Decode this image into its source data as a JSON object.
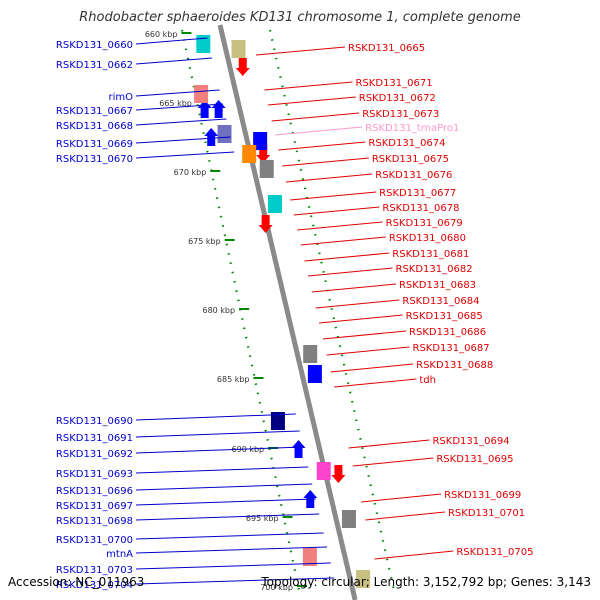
{
  "title": "Rhodobacter sphaeroides KD131 chromosome 1, complete genome",
  "footer": {
    "accession": "Accession: NC_011963",
    "summary": "Topology: circular; Length: 3,152,792 bp; Genes: 3,143"
  },
  "colors": {
    "backbone": "#8a8a8a",
    "left_labels": "#0000cc",
    "right_labels": "#e00000",
    "rna_label": "#ff99cc",
    "ruler_dots": "#008800",
    "gene_red": "#ff0000",
    "gene_blue": "#0000ff",
    "gene_navy": "#000080",
    "gene_cyan": "#00cccc",
    "gene_orange": "#ff8800",
    "gene_gray": "#808080",
    "gene_pink": "#ff44cc",
    "gene_olive": "#c8c080",
    "gene_salmon": "#f08080",
    "gene_slate": "#7070c0"
  },
  "ruler": [
    "660 kbp",
    "665 kbp",
    "670 kbp",
    "675 kbp",
    "680 kbp",
    "685 kbp",
    "690 kbp",
    "695 kbp",
    "700 kbp"
  ],
  "left_labels": [
    "RSKD131_0660",
    "RSKD131_0662",
    "rimO",
    "RSKD131_0667",
    "RSKD131_0668",
    "RSKD131_0669",
    "RSKD131_0670",
    "RSKD131_0690",
    "RSKD131_0691",
    "RSKD131_0692",
    "RSKD131_0693",
    "RSKD131_0696",
    "RSKD131_0697",
    "RSKD131_0698",
    "RSKD131_0700",
    "mtnA",
    "RSKD131_0703",
    "RSKD131_0704"
  ],
  "right_labels": [
    "RSKD131_0665",
    "RSKD131_0671",
    "RSKD131_0672",
    "RSKD131_0673",
    "RSKD131_trnaPro1",
    "RSKD131_0674",
    "RSKD131_0675",
    "RSKD131_0676",
    "RSKD131_0677",
    "RSKD131_0678",
    "RSKD131_0679",
    "RSKD131_0680",
    "RSKD131_0681",
    "RSKD131_0682",
    "RSKD131_0683",
    "RSKD131_0684",
    "RSKD131_0685",
    "RSKD131_0686",
    "RSKD131_0687",
    "RSKD131_0688",
    "tdh",
    "RSKD131_0694",
    "RSKD131_0695",
    "RSKD131_0699",
    "RSKD131_0701",
    "RSKD131_0705"
  ],
  "genes": [
    {
      "strand": "+",
      "kind": "block",
      "color": "gene_cyan"
    },
    {
      "strand": "+",
      "kind": "arrow",
      "color": "gene_blue"
    },
    {
      "strand": "-",
      "kind": "block",
      "color": "gene_olive"
    },
    {
      "strand": "-",
      "kind": "arrow",
      "color": "gene_red"
    },
    {
      "strand": "+",
      "kind": "block",
      "color": "gene_salmon"
    },
    {
      "strand": "+",
      "kind": "arrow",
      "color": "gene_blue"
    },
    {
      "strand": "+",
      "kind": "block",
      "color": "gene_slate"
    },
    {
      "strand": "+",
      "kind": "arrow",
      "color": "gene_blue"
    },
    {
      "strand": "-",
      "kind": "arrow",
      "color": "gene_red"
    },
    {
      "strand": "-",
      "kind": "block",
      "color": "gene_blue"
    },
    {
      "strand": "-",
      "kind": "block",
      "color": "gene_orange"
    },
    {
      "strand": "-",
      "kind": "block",
      "color": "gene_gray"
    },
    {
      "strand": "-",
      "kind": "block",
      "color": "gene_cyan"
    },
    {
      "strand": "-",
      "kind": "arrow",
      "color": "gene_red"
    },
    {
      "strand": "-",
      "kind": "block",
      "color": "gene_gray"
    },
    {
      "strand": "-",
      "kind": "block",
      "color": "gene_blue"
    },
    {
      "strand": "+",
      "kind": "block",
      "color": "gene_navy"
    },
    {
      "strand": "+",
      "kind": "arrow",
      "color": "gene_blue"
    },
    {
      "strand": "-",
      "kind": "arrow",
      "color": "gene_red"
    },
    {
      "strand": "-",
      "kind": "block",
      "color": "gene_pink"
    },
    {
      "strand": "+",
      "kind": "arrow",
      "color": "gene_blue"
    },
    {
      "strand": "-",
      "kind": "block",
      "color": "gene_gray"
    },
    {
      "strand": "+",
      "kind": "block",
      "color": "gene_salmon"
    },
    {
      "strand": "-",
      "kind": "block",
      "color": "gene_olive"
    }
  ]
}
